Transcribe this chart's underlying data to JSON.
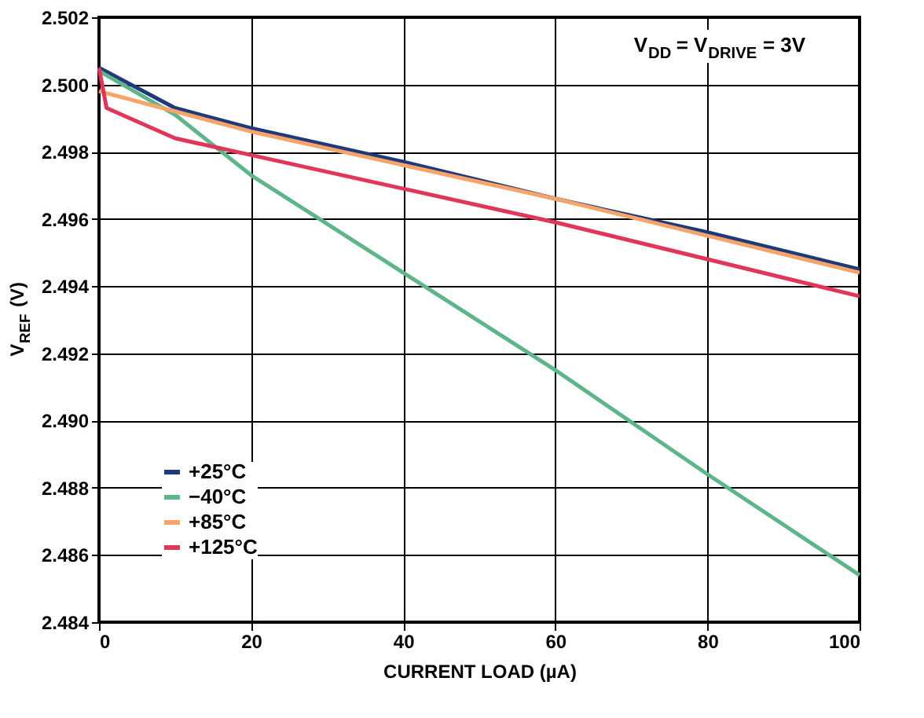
{
  "chart_data": {
    "type": "line",
    "xlabel": "CURRENT LOAD (µA)",
    "ylabel": "V$_{REF}$ (V)",
    "xlim": [
      0,
      100
    ],
    "xticks": [
      0,
      20,
      40,
      60,
      80,
      100
    ],
    "ylim": [
      2.484,
      2.502
    ],
    "yticks": [
      2.484,
      2.486,
      2.488,
      {
        "value": 2.49,
        "label": "2.490"
      },
      2.492,
      2.494,
      2.496,
      2.498,
      {
        "value": 2.5,
        "label": "2.500"
      },
      2.502
    ],
    "grid": true,
    "legend": "bottom left",
    "line_style": "solid",
    "marker": "none",
    "annotations": [
      "V$_{DD}$ = V$_{DRIVE}$ = 3V"
    ],
    "series": [
      {
        "name": "+25°C",
        "color": "#1f3a7a",
        "x": [
          0,
          10,
          20,
          40,
          60,
          80,
          100
        ],
        "values": [
          2.5005,
          2.4993,
          2.4987,
          2.4977,
          2.4966,
          2.4956,
          2.4945
        ]
      },
      {
        "name": "−40°C",
        "color": "#5fb58a",
        "x": [
          0,
          10,
          20,
          40,
          60,
          80,
          100
        ],
        "values": [
          2.5004,
          2.4991,
          2.4973,
          2.4944,
          2.4915,
          2.4884,
          2.4854
        ]
      },
      {
        "name": "+85°C",
        "color": "#f7a46a",
        "x": [
          0,
          10,
          20,
          40,
          60,
          80,
          100
        ],
        "values": [
          2.4998,
          2.4992,
          2.4986,
          2.4976,
          2.4966,
          2.4955,
          2.4944
        ]
      },
      {
        "name": "+125°C",
        "color": "#e0365a",
        "x": [
          0,
          1,
          10,
          20,
          40,
          60,
          80,
          100
        ],
        "values": [
          2.5005,
          2.4993,
          2.4984,
          2.4979,
          2.4969,
          2.4959,
          2.4948,
          2.4937
        ]
      }
    ]
  }
}
